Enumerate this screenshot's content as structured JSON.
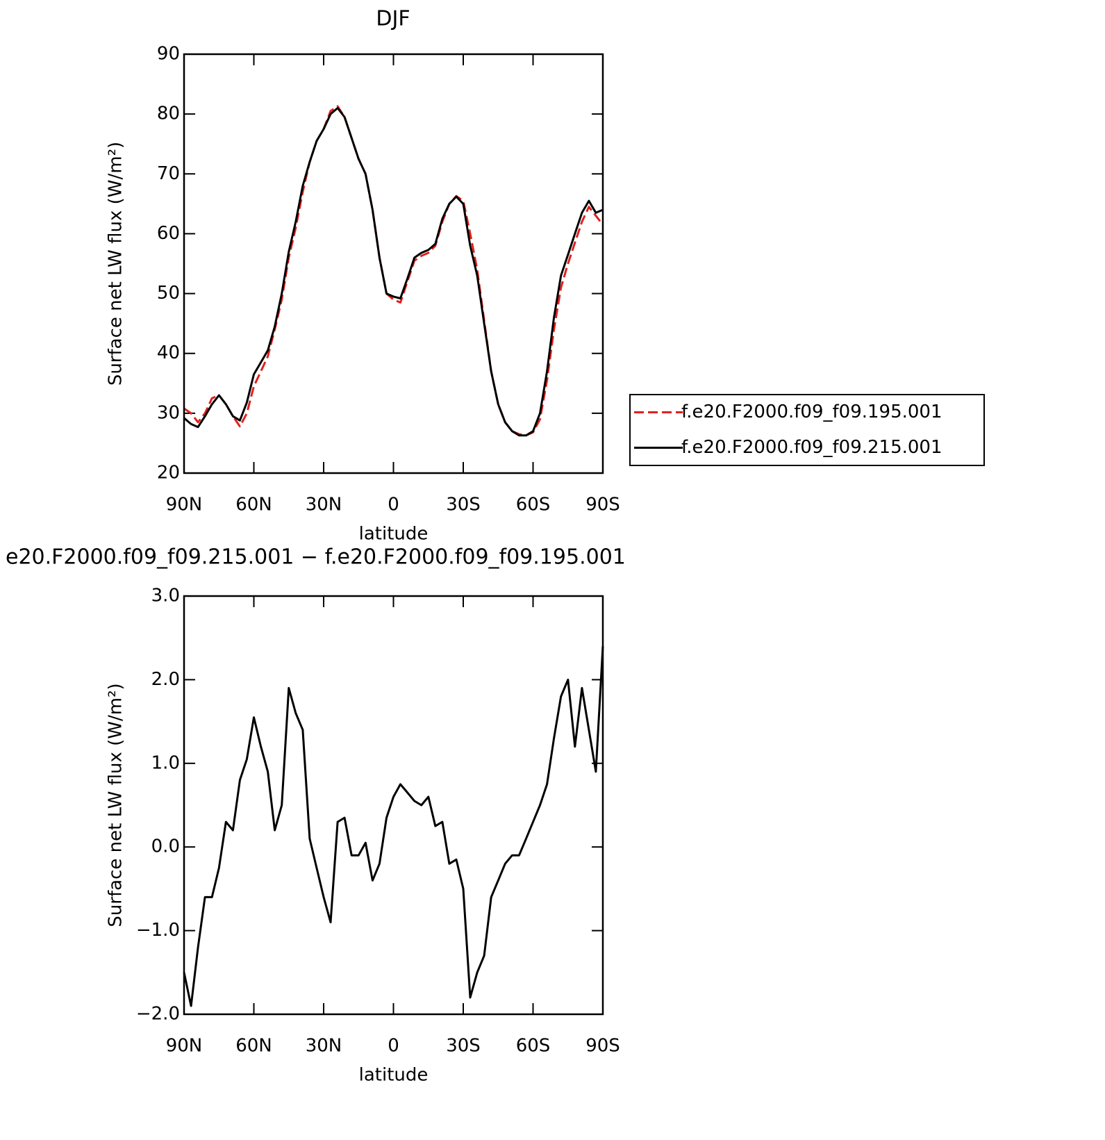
{
  "chart_data": [
    {
      "type": "line",
      "title": "DJF",
      "xlabel": "latitude",
      "ylabel": "Surface net LW flux (W/m²)",
      "x": [
        90,
        87,
        84,
        81,
        78,
        75,
        72,
        69,
        66,
        63,
        60,
        57,
        54,
        51,
        48,
        45,
        42,
        39,
        36,
        33,
        30,
        27,
        24,
        21,
        18,
        15,
        12,
        9,
        6,
        3,
        0,
        -3,
        -6,
        -9,
        -12,
        -15,
        -18,
        -21,
        -24,
        -27,
        -30,
        -33,
        -36,
        -39,
        -42,
        -45,
        -48,
        -51,
        -54,
        -57,
        -60,
        -63,
        -66,
        -69,
        -72,
        -75,
        -78,
        -81,
        -84,
        -87,
        -90
      ],
      "xlim": [
        90,
        -90
      ],
      "xticks": [
        {
          "value": 90,
          "label": "90N"
        },
        {
          "value": 60,
          "label": "60N"
        },
        {
          "value": 30,
          "label": "30N"
        },
        0,
        {
          "value": -30,
          "label": "30S"
        },
        {
          "value": -60,
          "label": "60S"
        },
        {
          "value": -90,
          "label": "90S"
        }
      ],
      "ylim": [
        20,
        90
      ],
      "yticks": [
        20,
        30,
        40,
        50,
        60,
        70,
        80,
        90
      ],
      "legend": "outside right",
      "series": [
        {
          "name": "f.e20.F2000.f09_f09.195.001",
          "color": "#e0201e",
          "linestyle": "dashed",
          "values": [
            30.8,
            30,
            28.5,
            30,
            32.5,
            33,
            31.5,
            29.5,
            27.8,
            30,
            34.5,
            37,
            39.5,
            44,
            49,
            56,
            61,
            67,
            72,
            75.5,
            77.5,
            80.5,
            81.3,
            79.5,
            76,
            72.5,
            70,
            64,
            56,
            50,
            49,
            48.5,
            52,
            55.5,
            56.3,
            56.8,
            58,
            62,
            65,
            66.3,
            65.5,
            60,
            54,
            45.5,
            37,
            31.5,
            28.5,
            27,
            26.5,
            26.3,
            26.8,
            29,
            35.5,
            44,
            51,
            55,
            58.5,
            62,
            64.5,
            63,
            61.5
          ]
        },
        {
          "name": "f.e20.F2000.f09_f09.215.001",
          "color": "#000000",
          "linestyle": "solid",
          "values": [
            29.2,
            28.2,
            27.7,
            29.5,
            31.5,
            33,
            31.5,
            29.5,
            28.8,
            31.8,
            36.5,
            38.5,
            40.5,
            44.5,
            50,
            57,
            62,
            68,
            72,
            75.5,
            77.5,
            80,
            81,
            79.5,
            76,
            72.5,
            70,
            64,
            56,
            50,
            49.5,
            49.2,
            52.5,
            56,
            56.8,
            57.3,
            58.3,
            62.5,
            65,
            66.2,
            65,
            58,
            53,
            45,
            37,
            31.5,
            28.5,
            27,
            26.3,
            26.3,
            27,
            30,
            37,
            46,
            53,
            56.5,
            60,
            63.5,
            65.5,
            63.5,
            64
          ]
        }
      ]
    },
    {
      "type": "line",
      "title": "e20.F2000.f09_f09.215.001 − f.e20.F2000.f09_f09.195.001",
      "xlabel": "latitude",
      "ylabel": "Surface net LW flux (W/m²)",
      "x": [
        90,
        87,
        84,
        81,
        78,
        75,
        72,
        69,
        66,
        63,
        60,
        57,
        54,
        51,
        48,
        45,
        42,
        39,
        36,
        33,
        30,
        27,
        24,
        21,
        18,
        15,
        12,
        9,
        6,
        3,
        0,
        -3,
        -6,
        -9,
        -12,
        -15,
        -18,
        -21,
        -24,
        -27,
        -30,
        -33,
        -36,
        -39,
        -42,
        -45,
        -48,
        -51,
        -54,
        -57,
        -60,
        -63,
        -66,
        -69,
        -72,
        -75,
        -78,
        -81,
        -84,
        -87,
        -90
      ],
      "xlim": [
        90,
        -90
      ],
      "xticks": [
        {
          "value": 90,
          "label": "90N"
        },
        {
          "value": 60,
          "label": "60N"
        },
        {
          "value": 30,
          "label": "30N"
        },
        0,
        {
          "value": -30,
          "label": "30S"
        },
        {
          "value": -60,
          "label": "60S"
        },
        {
          "value": -90,
          "label": "90S"
        }
      ],
      "ylim": [
        -2,
        3
      ],
      "yticks": [
        {
          "value": -2,
          "label": "−2.0"
        },
        {
          "value": -1,
          "label": "−1.0"
        },
        {
          "value": 0,
          "label": "0.0"
        },
        {
          "value": 1,
          "label": "1.0"
        },
        {
          "value": 2,
          "label": "2.0"
        },
        {
          "value": 3,
          "label": "3.0"
        }
      ],
      "series": [
        {
          "color": "#000000",
          "linestyle": "solid",
          "values": [
            -1.5,
            -1.9,
            -1.2,
            -0.6,
            -0.6,
            -0.25,
            0.3,
            0.2,
            0.8,
            1.05,
            1.55,
            1.2,
            0.9,
            0.2,
            0.5,
            1.9,
            1.6,
            1.4,
            0.1,
            -0.25,
            -0.6,
            -0.9,
            0.3,
            0.35,
            -0.1,
            -0.1,
            0.05,
            -0.4,
            -0.2,
            0.35,
            0.6,
            0.75,
            0.65,
            0.55,
            0.5,
            0.6,
            0.25,
            0.3,
            -0.2,
            -0.15,
            -0.5,
            -1.8,
            -1.5,
            -1.3,
            -0.6,
            -0.4,
            -0.2,
            -0.1,
            -0.1,
            0.1,
            0.3,
            0.5,
            0.75,
            1.3,
            1.8,
            2.0,
            1.2,
            1.9,
            1.4,
            0.9,
            2.4
          ]
        }
      ]
    }
  ]
}
